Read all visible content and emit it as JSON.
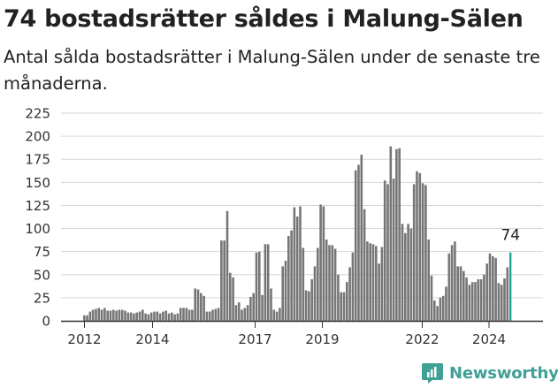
{
  "header": {
    "title": "74 bostadsrätter såldes i Malung-Sälen",
    "subtitle": "Antal sålda bostadsrätter i Malung-Sälen under de senaste tre månaderna."
  },
  "brand": {
    "name": "Newsworthy",
    "logo_icon": "newsworthy-chart-logo-icon",
    "color": "#3fa095"
  },
  "colors": {
    "bar": "#767676",
    "highlight": "#179b93",
    "grid": "#d6d6d6",
    "axis": "#333333"
  },
  "chart_data": {
    "type": "bar",
    "title": "74 bostadsrätter såldes i Malung-Sälen",
    "xlabel": "",
    "ylabel": "",
    "ylim": [
      0,
      225
    ],
    "yticks": [
      0,
      25,
      50,
      75,
      100,
      125,
      150,
      175,
      200,
      225
    ],
    "xticks": [
      "2012",
      "2014",
      "2017",
      "2019",
      "2022",
      "2024"
    ],
    "grid": true,
    "series": [
      {
        "values": [
          6,
          6,
          10,
          12,
          13,
          14,
          12,
          14,
          11,
          11,
          12,
          11,
          12,
          12,
          11,
          9,
          9,
          8,
          9,
          10,
          12,
          8,
          7,
          9,
          10,
          10,
          8,
          10,
          11,
          8,
          9,
          7,
          8,
          14,
          14,
          14,
          12,
          12,
          35,
          34,
          30,
          27,
          10,
          10,
          12,
          13,
          14,
          87,
          87,
          119,
          52,
          47,
          17,
          20,
          12,
          14,
          17,
          26,
          30,
          74,
          75,
          28,
          83,
          83,
          35,
          12,
          10,
          14,
          59,
          65,
          92,
          98,
          123,
          113,
          124,
          79,
          33,
          32,
          45,
          59,
          79,
          126,
          124,
          88,
          82,
          82,
          78,
          50,
          31,
          31,
          42,
          58,
          74,
          163,
          169,
          180,
          121,
          86,
          84,
          83,
          81,
          62,
          80,
          152,
          148,
          189,
          154,
          186,
          187,
          105,
          95,
          105,
          100,
          148,
          162,
          160,
          149,
          147,
          88,
          49,
          22,
          16,
          25,
          27,
          37,
          73,
          82,
          86,
          59,
          59,
          54,
          47,
          39,
          42,
          42,
          45,
          45,
          50,
          62,
          73,
          70,
          68,
          41,
          39,
          46,
          58,
          74
        ]
      }
    ],
    "highlight_label": "74"
  }
}
